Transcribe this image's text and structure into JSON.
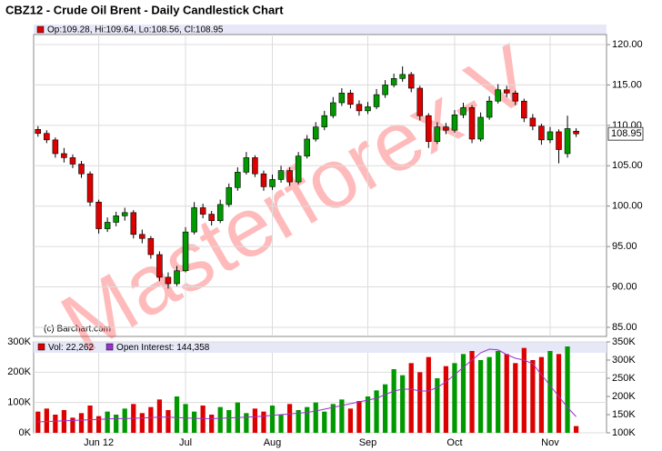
{
  "chart_data": [
    {
      "type": "candlestick",
      "title": "CBZ12 - Crude Oil Brent - Daily Candlestick Chart",
      "ohlc_label": "Op:109.28, Hi:109.64, Lo:108.56, Cl:108.95",
      "source": "(c) Barchart.com",
      "watermark": "Masterforex-V",
      "last_label": "108.95",
      "up_color": "#009900",
      "down_color": "#dd0000",
      "ylim": [
        83.87,
        121.24
      ],
      "yticks": [
        {
          "value": 85,
          "label": "85.00"
        },
        {
          "value": 90,
          "label": "90.00"
        },
        {
          "value": 95,
          "label": "95.00"
        },
        {
          "value": 100,
          "label": "100.00"
        },
        {
          "value": 105,
          "label": "105.00"
        },
        {
          "value": 110,
          "label": "110.00"
        },
        {
          "value": 115,
          "label": "115.00"
        },
        {
          "value": 120,
          "label": "120.00"
        }
      ],
      "grid": true,
      "open": [
        109.5,
        109.0,
        108.2,
        106.5,
        106.0,
        105.2,
        104.0,
        100.5,
        97.2,
        98.0,
        98.8,
        99.2,
        96.5,
        96.0,
        94.0,
        91.2,
        90.4,
        92.0,
        96.8,
        99.8,
        99.0,
        98.2,
        100.2,
        102.3,
        104.2,
        106.0,
        104.0,
        102.4,
        103.3,
        104.4,
        103.0,
        106.2,
        108.3,
        109.8,
        111.2,
        112.8,
        114.0,
        112.6,
        111.8,
        112.3,
        113.8,
        115.0,
        115.8,
        116.3,
        114.6,
        111.2,
        108.0,
        109.8,
        109.4,
        111.3,
        112.2,
        108.3,
        111.0,
        113.0,
        114.4,
        114.0,
        113.0,
        110.9,
        109.9,
        108.2,
        109.2,
        106.5,
        109.28
      ],
      "high": [
        109.9,
        109.4,
        108.5,
        107.2,
        106.4,
        105.6,
        104.3,
        100.8,
        98.6,
        99.3,
        99.8,
        99.5,
        97.1,
        96.3,
        94.4,
        91.8,
        92.6,
        97.4,
        100.5,
        100.3,
        99.4,
        100.8,
        102.8,
        104.8,
        106.7,
        106.3,
        104.4,
        103.9,
        105.0,
        104.8,
        106.7,
        108.8,
        110.4,
        111.8,
        113.5,
        114.6,
        114.4,
        113.1,
        112.9,
        114.5,
        115.6,
        116.4,
        117.3,
        116.6,
        114.9,
        111.5,
        110.4,
        110.3,
        111.9,
        112.8,
        112.5,
        111.6,
        113.6,
        115.1,
        114.9,
        114.3,
        113.3,
        111.4,
        110.2,
        109.8,
        109.5,
        111.2,
        109.64
      ],
      "low": [
        108.6,
        107.8,
        106.0,
        105.4,
        104.7,
        103.5,
        100.0,
        96.6,
        96.8,
        97.5,
        98.2,
        96.0,
        95.4,
        93.5,
        90.7,
        89.8,
        90.1,
        91.8,
        96.5,
        98.5,
        97.6,
        97.9,
        99.9,
        101.9,
        103.9,
        103.6,
        101.9,
        102.0,
        102.9,
        102.5,
        102.7,
        105.9,
        108.0,
        109.4,
        110.9,
        112.4,
        112.1,
        111.2,
        111.4,
        112.0,
        113.4,
        114.7,
        115.4,
        114.1,
        110.6,
        107.2,
        107.7,
        108.9,
        109.1,
        110.9,
        107.8,
        108.0,
        110.7,
        112.7,
        113.5,
        112.5,
        110.4,
        109.4,
        107.6,
        107.8,
        105.3,
        106.0,
        108.56
      ],
      "close": [
        109.0,
        108.2,
        106.5,
        106.0,
        105.2,
        104.0,
        100.5,
        97.2,
        98.0,
        98.8,
        99.2,
        96.5,
        96.0,
        94.0,
        91.2,
        90.4,
        92.0,
        96.8,
        99.8,
        99.0,
        98.2,
        100.2,
        102.3,
        104.2,
        106.0,
        104.0,
        102.4,
        103.3,
        104.4,
        103.0,
        106.2,
        108.3,
        109.8,
        111.2,
        112.8,
        114.0,
        112.6,
        111.8,
        112.3,
        113.8,
        115.0,
        115.8,
        116.3,
        114.6,
        111.2,
        108.0,
        109.8,
        109.4,
        111.3,
        112.2,
        108.3,
        111.0,
        113.0,
        114.4,
        114.0,
        113.0,
        110.9,
        109.9,
        108.2,
        109.2,
        107.0,
        109.6,
        108.95
      ]
    },
    {
      "type": "bar",
      "categories": [
        null,
        null,
        null,
        null,
        null,
        null,
        null,
        "Jun 12",
        null,
        null,
        null,
        null,
        null,
        null,
        null,
        null,
        null,
        "Jul",
        null,
        null,
        null,
        null,
        null,
        null,
        null,
        null,
        null,
        "Aug",
        null,
        null,
        null,
        null,
        null,
        null,
        null,
        null,
        null,
        null,
        "Sep",
        null,
        null,
        null,
        null,
        null,
        null,
        null,
        null,
        null,
        "Oct",
        null,
        null,
        null,
        null,
        null,
        null,
        null,
        null,
        null,
        null,
        "Nov",
        null,
        null,
        null
      ],
      "ylim": [
        0,
        300000
      ],
      "yticks": [
        {
          "value": 0,
          "label": "0K"
        },
        {
          "value": 100000,
          "label": "100K"
        },
        {
          "value": 200000,
          "label": "200K"
        },
        {
          "value": 300000,
          "label": "300K"
        }
      ],
      "y2lim": [
        100000,
        350000
      ],
      "y2ticks": [
        {
          "value": 100000,
          "label": "100K"
        },
        {
          "value": 150000,
          "label": "150K"
        },
        {
          "value": 200000,
          "label": "200K"
        },
        {
          "value": 250000,
          "label": "250K"
        },
        {
          "value": 300000,
          "label": "300K"
        },
        {
          "value": 350000,
          "label": "350K"
        }
      ],
      "grid": true,
      "series": [
        {
          "name": "Vol: 22,262",
          "color": "#dd0000",
          "values": [
            70000,
            80000,
            60000,
            75000,
            50000,
            65000,
            90000,
            55000,
            70000,
            60000,
            80000,
            95000,
            65000,
            85000,
            110000,
            75000,
            120000,
            95000,
            70000,
            90000,
            60000,
            85000,
            75000,
            100000,
            65000,
            80000,
            70000,
            90000,
            60000,
            95000,
            75000,
            85000,
            100000,
            70000,
            95000,
            110000,
            80000,
            105000,
            120000,
            140000,
            160000,
            210000,
            190000,
            230000,
            200000,
            250000,
            180000,
            220000,
            230000,
            260000,
            270000,
            240000,
            250000,
            270000,
            260000,
            230000,
            280000,
            240000,
            250000,
            270000,
            260000,
            285000,
            22262
          ]
        },
        {
          "name": "Open Interest: 144,358",
          "color": "#9933cc",
          "axis": "y2",
          "values": [
            130000,
            131000,
            132000,
            133000,
            134000,
            135000,
            136000,
            137000,
            138000,
            139000,
            139000,
            140000,
            141000,
            142000,
            143000,
            143000,
            142000,
            141000,
            140000,
            139000,
            139000,
            140000,
            141000,
            142000,
            143000,
            144000,
            146000,
            148000,
            150000,
            152000,
            154000,
            156000,
            160000,
            165000,
            170000,
            175000,
            180000,
            185000,
            190000,
            195000,
            205000,
            215000,
            220000,
            220000,
            215000,
            215000,
            225000,
            240000,
            260000,
            280000,
            300000,
            320000,
            330000,
            328000,
            315000,
            305000,
            300000,
            290000,
            260000,
            230000,
            200000,
            170000,
            144358
          ]
        }
      ]
    }
  ]
}
